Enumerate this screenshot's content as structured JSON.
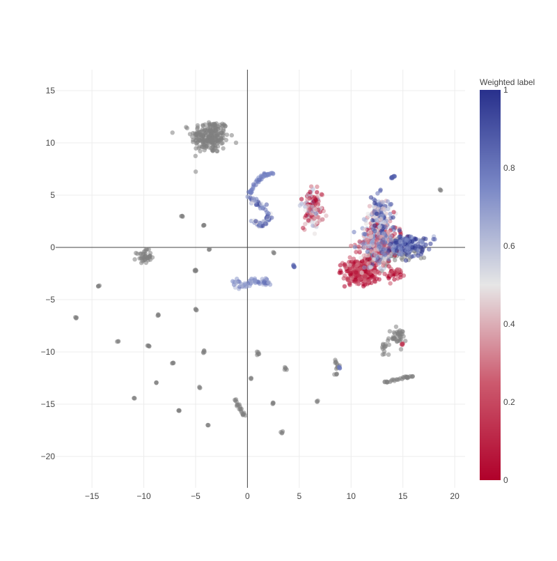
{
  "chart_data": {
    "type": "scatter",
    "title": "",
    "xlabel": "",
    "ylabel": "",
    "xlim": [
      -18.5,
      21
    ],
    "ylim": [
      -23,
      17
    ],
    "x_ticks": [
      -15,
      -10,
      -5,
      0,
      5,
      10,
      15,
      20
    ],
    "x_tick_labels": [
      "−15",
      "−10",
      "−5",
      "0",
      "5",
      "10",
      "15",
      "20"
    ],
    "y_ticks": [
      -20,
      -15,
      -10,
      -5,
      0,
      5,
      10,
      15
    ],
    "y_tick_labels": [
      "−20",
      "−15",
      "−10",
      "−5",
      "0",
      "5",
      "10",
      "15"
    ],
    "grid": true,
    "zero_lines": true,
    "colorbar": {
      "title": "Weighted label",
      "range": [
        0,
        1
      ],
      "ticks": [
        0,
        0.2,
        0.4,
        0.6,
        0.8,
        1
      ],
      "tick_labels": [
        "0",
        "0.2",
        "0.4",
        "0.6",
        "0.8",
        "1"
      ],
      "colorscale": [
        [
          0,
          "#b0002a"
        ],
        [
          0.25,
          "#cc5a6e"
        ],
        [
          0.5,
          "#e6e6e6"
        ],
        [
          0.75,
          "#7a88c6"
        ],
        [
          1,
          "#28308c"
        ]
      ]
    },
    "unlabeled_color": "#7f7f7f",
    "point_opacity": 0.55,
    "unlabeled_clusters": [
      {
        "cx": -3.6,
        "cy": 10.6,
        "sx": 0.9,
        "sy": 0.8,
        "n": 220
      },
      {
        "cx": -10.0,
        "cy": -0.9,
        "sx": 0.35,
        "sy": 0.3,
        "n": 40
      },
      {
        "cx": -6.3,
        "cy": 3.0,
        "sx": 0.05,
        "sy": 0.05,
        "n": 4
      },
      {
        "cx": -4.2,
        "cy": 2.1,
        "sx": 0.05,
        "sy": 0.05,
        "n": 4
      },
      {
        "cx": -3.7,
        "cy": -0.2,
        "sx": 0.04,
        "sy": 0.04,
        "n": 3
      },
      {
        "cx": -5.0,
        "cy": -2.2,
        "sx": 0.05,
        "sy": 0.1,
        "n": 6
      },
      {
        "cx": -14.3,
        "cy": -3.7,
        "sx": 0.05,
        "sy": 0.05,
        "n": 4
      },
      {
        "cx": -16.5,
        "cy": -6.7,
        "sx": 0.05,
        "sy": 0.05,
        "n": 4
      },
      {
        "cx": -12.5,
        "cy": -9.0,
        "sx": 0.04,
        "sy": 0.04,
        "n": 3
      },
      {
        "cx": -9.5,
        "cy": -9.4,
        "sx": 0.06,
        "sy": 0.06,
        "n": 5
      },
      {
        "cx": -8.6,
        "cy": -6.5,
        "sx": 0.05,
        "sy": 0.05,
        "n": 4
      },
      {
        "cx": -5.0,
        "cy": -6.0,
        "sx": 0.05,
        "sy": 0.05,
        "n": 4
      },
      {
        "cx": -4.2,
        "cy": -9.9,
        "sx": 0.06,
        "sy": 0.08,
        "n": 5
      },
      {
        "cx": -7.2,
        "cy": -11.1,
        "sx": 0.05,
        "sy": 0.05,
        "n": 4
      },
      {
        "cx": -8.8,
        "cy": -12.9,
        "sx": 0.04,
        "sy": 0.04,
        "n": 3
      },
      {
        "cx": -4.6,
        "cy": -13.4,
        "sx": 0.04,
        "sy": 0.04,
        "n": 3
      },
      {
        "cx": -10.9,
        "cy": -14.4,
        "sx": 0.04,
        "sy": 0.04,
        "n": 3
      },
      {
        "cx": -6.6,
        "cy": -15.6,
        "sx": 0.05,
        "sy": 0.05,
        "n": 4
      },
      {
        "cx": -3.8,
        "cy": -17.0,
        "sx": 0.04,
        "sy": 0.04,
        "n": 3
      },
      {
        "cx": 1.0,
        "cy": -10.2,
        "sx": 0.08,
        "sy": 0.12,
        "n": 6
      },
      {
        "cx": 0.4,
        "cy": -12.5,
        "sx": 0.04,
        "sy": 0.04,
        "n": 3
      },
      {
        "cx": 3.7,
        "cy": -11.6,
        "sx": 0.06,
        "sy": 0.08,
        "n": 5
      },
      {
        "cx": 2.5,
        "cy": -14.9,
        "sx": 0.05,
        "sy": 0.05,
        "n": 4
      },
      {
        "cx": 3.3,
        "cy": -17.7,
        "sx": 0.05,
        "sy": 0.05,
        "n": 4
      },
      {
        "cx": 6.7,
        "cy": -14.7,
        "sx": 0.04,
        "sy": 0.04,
        "n": 3
      },
      {
        "cx": 2.5,
        "cy": -0.5,
        "sx": 0.04,
        "sy": 0.04,
        "n": 3
      },
      {
        "cx": 18.6,
        "cy": 5.5,
        "sx": 0.05,
        "sy": 0.05,
        "n": 3
      },
      {
        "cx": 14.4,
        "cy": -8.6,
        "sx": 0.45,
        "sy": 0.4,
        "n": 40
      },
      {
        "cx": 13.2,
        "cy": -9.8,
        "sx": 0.15,
        "sy": 0.4,
        "n": 12
      }
    ],
    "unlabeled_paths": [
      {
        "points": [
          [
            -1.4,
            -14.3
          ],
          [
            -0.9,
            -15.0
          ],
          [
            -0.6,
            -15.6
          ],
          [
            -0.3,
            -16.1
          ]
        ],
        "n": 22,
        "jitter": 0.06
      },
      {
        "points": [
          [
            8.4,
            -10.8
          ],
          [
            8.7,
            -11.5
          ],
          [
            8.5,
            -12.3
          ]
        ],
        "n": 14,
        "jitter": 0.08
      },
      {
        "points": [
          [
            13.0,
            -13.0
          ],
          [
            14.0,
            -12.7
          ],
          [
            15.0,
            -12.5
          ],
          [
            16.0,
            -12.3
          ]
        ],
        "n": 30,
        "jitter": 0.05
      },
      {
        "points": [
          [
            12.0,
            -1.2
          ],
          [
            13.5,
            -0.5
          ],
          [
            15.0,
            -0.1
          ],
          [
            16.5,
            0.1
          ]
        ],
        "n": 90,
        "jitter": 0.6
      }
    ],
    "labeled_clusters": [
      {
        "cx": 6.3,
        "cy": 3.6,
        "sx": 0.45,
        "sy": 0.9,
        "n": 150,
        "value_mean": 0.35,
        "value_spread": 0.4
      },
      {
        "cx": 11.0,
        "cy": -2.3,
        "sx": 0.8,
        "sy": 0.6,
        "n": 320,
        "value_mean": 0.12,
        "value_spread": 0.2
      },
      {
        "cx": 12.6,
        "cy": 0.5,
        "sx": 0.9,
        "sy": 1.2,
        "n": 380,
        "value_mean": 0.45,
        "value_spread": 0.45
      },
      {
        "cx": 12.8,
        "cy": 3.2,
        "sx": 0.5,
        "sy": 0.8,
        "n": 120,
        "value_mean": 0.7,
        "value_spread": 0.35
      },
      {
        "cx": 15.2,
        "cy": 0.2,
        "sx": 1.0,
        "sy": 0.5,
        "n": 170,
        "value_mean": 0.85,
        "value_spread": 0.2
      },
      {
        "cx": 14.3,
        "cy": -2.5,
        "sx": 0.4,
        "sy": 0.3,
        "n": 40,
        "value_mean": 0.15,
        "value_spread": 0.2
      }
    ],
    "labeled_paths": [
      {
        "points": [
          [
            0.2,
            5.2
          ],
          [
            0.8,
            6.2
          ],
          [
            1.6,
            6.9
          ],
          [
            2.5,
            7.1
          ]
        ],
        "n": 45,
        "jitter": 0.08,
        "value_mean": 0.78,
        "value_spread": 0.05
      },
      {
        "points": [
          [
            0.0,
            4.6
          ],
          [
            0.9,
            4.4
          ],
          [
            1.5,
            3.8
          ],
          [
            2.2,
            2.9
          ],
          [
            1.8,
            2.4
          ],
          [
            1.2,
            2.2
          ],
          [
            0.7,
            2.6
          ]
        ],
        "n": 80,
        "jitter": 0.15,
        "value_mean": 0.72,
        "value_spread": 0.25
      },
      {
        "points": [
          [
            -1.2,
            -3.3
          ],
          [
            -0.5,
            -3.8
          ],
          [
            0.5,
            -3.2
          ],
          [
            1.5,
            -3.4
          ],
          [
            2.2,
            -3.3
          ]
        ],
        "n": 70,
        "jitter": 0.15,
        "value_mean": 0.72,
        "value_spread": 0.12
      },
      {
        "points": [
          [
            13.8,
            6.6
          ],
          [
            14.2,
            6.8
          ]
        ],
        "n": 10,
        "jitter": 0.05,
        "value_mean": 0.85,
        "value_spread": 0.05
      },
      {
        "points": [
          [
            4.4,
            -1.7
          ],
          [
            4.5,
            -1.9
          ]
        ],
        "n": 5,
        "jitter": 0.04,
        "value_mean": 0.85,
        "value_spread": 0.05
      },
      {
        "points": [
          [
            8.8,
            -11.2
          ],
          [
            8.9,
            -11.6
          ]
        ],
        "n": 4,
        "jitter": 0.05,
        "value_mean": 0.8,
        "value_spread": 0.05
      },
      {
        "points": [
          [
            14.9,
            -9.2
          ],
          [
            15.0,
            -9.4
          ]
        ],
        "n": 4,
        "jitter": 0.05,
        "value_mean": 0.15,
        "value_spread": 0.05
      }
    ]
  }
}
